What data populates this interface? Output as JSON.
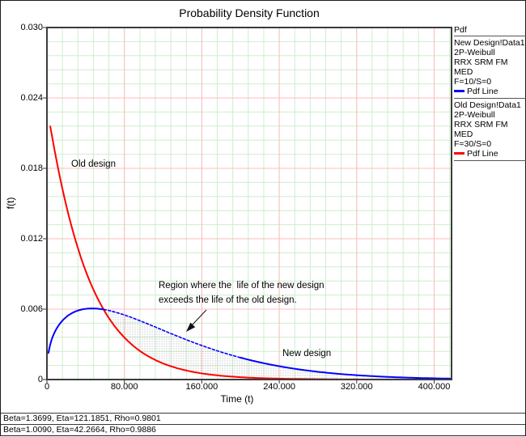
{
  "title": "Probability Density Function",
  "plot": {
    "xlabel": "Time (t)",
    "ylabel": "f(t)",
    "x_tick_labels": [
      "0",
      "80.000",
      "160.000",
      "240.000",
      "320.000",
      "400.000"
    ],
    "y_tick_labels": [
      "0",
      "0.006",
      "0.012",
      "0.018",
      "0.024",
      "0.030"
    ]
  },
  "legend": {
    "header": "Pdf",
    "groups": [
      {
        "lines": [
          "New Design!Data1",
          "2P-Weibull",
          "RRX SRM FM MED",
          "F=10/S=0"
        ],
        "marker_label": "Pdf Line",
        "marker_color": "#0000ff"
      },
      {
        "lines": [
          "Old Design!Data1",
          "2P-Weibull",
          "RRX SRM FM MED",
          "F=30/S=0"
        ],
        "marker_label": "Pdf Line",
        "marker_color": "#ff0000"
      }
    ]
  },
  "annotations": {
    "old_design": "Old design",
    "new_design": "New design",
    "region_line1": "Region where the  life of the new design",
    "region_line2": "exceeds the life of the old design."
  },
  "status_lines": [
    "Beta=1.3699, Eta=121.1851, Rho=0.9801",
    "Beta=1.0090, Eta=42.2664, Rho=0.9886"
  ],
  "chart_data": {
    "type": "line",
    "title": "Probability Density Function",
    "xlabel": "Time (t)",
    "ylabel": "f(t)",
    "xlim": [
      0,
      400
    ],
    "ylim": [
      0,
      0.03
    ],
    "x_tick_values": [
      0,
      80,
      160,
      240,
      320,
      400
    ],
    "y_tick_values": [
      0,
      0.006,
      0.012,
      0.018,
      0.024,
      0.03
    ],
    "grid": {
      "major_color": "#ffbcbc",
      "minor_color": "#cdeecd",
      "minor_per_major": 5
    },
    "series": [
      {
        "name": "New Design!Data1",
        "distribution": "2P-Weibull",
        "beta": 1.3699,
        "eta": 121.1851,
        "rho": 0.9801,
        "color": "#0000ff",
        "t_start": 1.6,
        "peak_value_approx": 0.006
      },
      {
        "name": "Old Design!Data1",
        "distribution": "2P-Weibull",
        "beta": 1.009,
        "eta": 42.2664,
        "rho": 0.9886,
        "color": "#ff0000",
        "t_start": 3.4,
        "start_value_approx": 0.022
      }
    ],
    "shaded_region": {
      "between": [
        "New Design!Data1",
        "Old Design!Data1"
      ],
      "from_t_intersection": true,
      "to_t": 300
    },
    "legend_position": "right"
  }
}
